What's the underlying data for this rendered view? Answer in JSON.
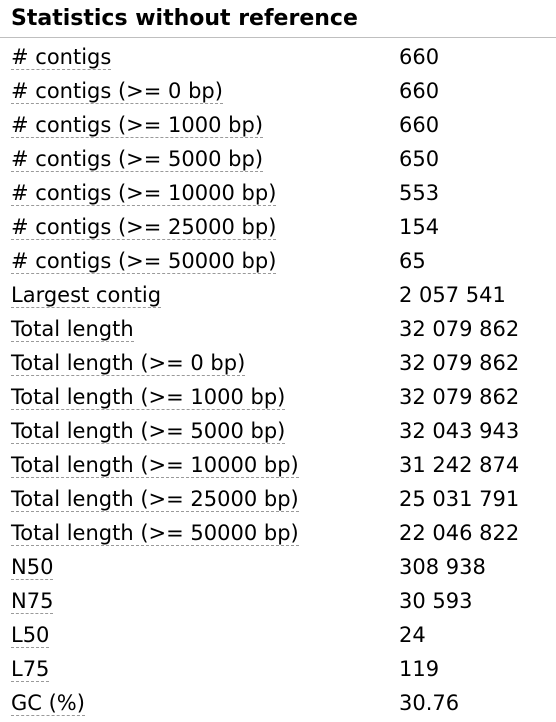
{
  "section": {
    "title": "Statistics without reference"
  },
  "rows": [
    {
      "label": "# contigs",
      "value": "660"
    },
    {
      "label": "# contigs (>= 0 bp)",
      "value": "660"
    },
    {
      "label": "# contigs (>= 1000 bp)",
      "value": "660"
    },
    {
      "label": "# contigs (>= 5000 bp)",
      "value": "650"
    },
    {
      "label": "# contigs (>= 10000 bp)",
      "value": "553"
    },
    {
      "label": "# contigs (>= 25000 bp)",
      "value": "154"
    },
    {
      "label": "# contigs (>= 50000 bp)",
      "value": "65"
    },
    {
      "label": "Largest contig",
      "value": "2 057 541"
    },
    {
      "label": "Total length",
      "value": "32 079 862"
    },
    {
      "label": "Total length (>= 0 bp)",
      "value": "32 079 862"
    },
    {
      "label": "Total length (>= 1000 bp)",
      "value": "32 079 862"
    },
    {
      "label": "Total length (>= 5000 bp)",
      "value": "32 043 943"
    },
    {
      "label": "Total length (>= 10000 bp)",
      "value": "31 242 874"
    },
    {
      "label": "Total length (>= 25000 bp)",
      "value": "25 031 791"
    },
    {
      "label": "Total length (>= 50000 bp)",
      "value": "22 046 822"
    },
    {
      "label": "N50",
      "value": "308 938"
    },
    {
      "label": "N75",
      "value": "30 593"
    },
    {
      "label": "L50",
      "value": "24"
    },
    {
      "label": "L75",
      "value": "119"
    },
    {
      "label": "GC (%)",
      "value": "30.76"
    }
  ]
}
